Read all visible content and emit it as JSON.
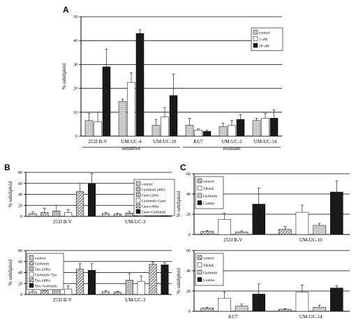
{
  "colors": {
    "background": "#ffffff",
    "axis": "#000000",
    "gridline": "#000000"
  },
  "panels": [
    {
      "letter": "A"
    },
    {
      "letter": "B"
    },
    {
      "letter": "C"
    }
  ],
  "chart_data": [
    {
      "id": "A",
      "type": "bar",
      "ylabel": "% subdiploid",
      "ylim": [
        0,
        50
      ],
      "yticks": [
        0,
        10,
        20,
        30,
        40,
        50
      ],
      "grid": true,
      "legend_position": "top-right",
      "categories": [
        "253J B-V",
        "UM-UC-4",
        "UM-UC-10",
        "KU7",
        "UM-UC-2",
        "UM-UC-14"
      ],
      "category_groups": [
        {
          "label": "sensitive",
          "span": [
            0,
            2
          ]
        },
        {
          "label": "resistant",
          "span": [
            3,
            5
          ]
        }
      ],
      "series": [
        {
          "name": "control",
          "values": [
            6.5,
            14.5,
            4.5,
            4.5,
            4.0,
            6.5
          ],
          "errors": [
            3.0,
            1.0,
            2.5,
            3.0,
            1.5,
            1.0
          ],
          "fill": "dots"
        },
        {
          "name": "1 uM",
          "values": [
            6.0,
            22.5,
            8.0,
            2.5,
            4.5,
            7.5
          ],
          "errors": [
            4.0,
            4.0,
            4.0,
            0.5,
            2.0,
            2.0
          ],
          "fill": "white"
        },
        {
          "name": "10 uM",
          "values": [
            29.0,
            43.0,
            17.0,
            2.0,
            7.0,
            7.5
          ],
          "errors": [
            7.5,
            1.5,
            9.0,
            0.5,
            2.0,
            3.5
          ],
          "fill": "dark"
        }
      ]
    },
    {
      "id": "B-top",
      "type": "bar",
      "ylabel": "% subdiploid",
      "ylim": [
        0,
        80
      ],
      "yticks": [
        0,
        20,
        40,
        60,
        80
      ],
      "grid": true,
      "legend_position": "top-right",
      "categories": [
        "253J B-V",
        "UM-UC-3"
      ],
      "series": [
        {
          "name": "control",
          "values": [
            5,
            5
          ],
          "errors": [
            3,
            2
          ],
          "fill": "dots"
        },
        {
          "name": "Gefitinib (48h)",
          "values": [
            7,
            4
          ],
          "errors": [
            8,
            1.5
          ],
          "fill": "diag"
        },
        {
          "name": "Gem (24h)",
          "values": [
            10,
            6
          ],
          "errors": [
            10,
            3
          ],
          "fill": "grid"
        },
        {
          "name": "Gefitinib>Gem",
          "values": [
            7,
            3
          ],
          "errors": [
            5,
            1
          ],
          "fill": "white"
        },
        {
          "name": "Gem (48h)",
          "values": [
            45,
            1
          ],
          "errors": [
            15,
            0.5
          ],
          "fill": "diag"
        },
        {
          "name": "Gem+Gefitinib",
          "values": [
            60,
            1
          ],
          "errors": [
            18,
            0.5
          ],
          "fill": "dark"
        }
      ]
    },
    {
      "id": "B-bottom",
      "type": "bar",
      "ylabel": "% subdiploid",
      "ylim": [
        0,
        80
      ],
      "yticks": [
        0,
        20,
        40,
        60,
        80
      ],
      "grid": true,
      "legend_position": "top-left",
      "categories": [
        "253J B-V",
        "UM-UC-3"
      ],
      "series": [
        {
          "name": "control",
          "values": [
            5,
            5
          ],
          "errors": [
            4,
            2
          ],
          "fill": "dots"
        },
        {
          "name": "Gefitinib",
          "values": [
            7,
            4
          ],
          "errors": [
            5,
            2
          ],
          "fill": "diag"
        },
        {
          "name": "Tax (24h)",
          "values": [
            30,
            26
          ],
          "errors": [
            12,
            12
          ],
          "fill": "grid"
        },
        {
          "name": "Gefitinib>Tax",
          "values": [
            10,
            24
          ],
          "errors": [
            6,
            10
          ],
          "fill": "white"
        },
        {
          "name": "Tax (48h)",
          "values": [
            46,
            55
          ],
          "errors": [
            10,
            4
          ],
          "fill": "diag"
        },
        {
          "name": "Tax>Gefitinib",
          "values": [
            44,
            54
          ],
          "errors": [
            12,
            4
          ],
          "fill": "dark"
        }
      ]
    },
    {
      "id": "C-top",
      "type": "bar",
      "ylabel": "% subdiploid",
      "ylim": [
        0,
        60
      ],
      "yticks": [
        0,
        20,
        40,
        60
      ],
      "grid": true,
      "legend_position": "top-left",
      "categories": [
        "253J B-V",
        "UM-UC-10"
      ],
      "series": [
        {
          "name": "control",
          "values": [
            3,
            5
          ],
          "errors": [
            1,
            3
          ],
          "fill": "diag"
        },
        {
          "name": "TRAIL",
          "values": [
            15,
            22
          ],
          "errors": [
            6,
            7
          ],
          "fill": "white"
        },
        {
          "name": "Gefitinib",
          "values": [
            2.5,
            9
          ],
          "errors": [
            1,
            2
          ],
          "fill": "dots"
        },
        {
          "name": "Combo",
          "values": [
            30,
            42
          ],
          "errors": [
            16,
            11
          ],
          "fill": "dark"
        }
      ]
    },
    {
      "id": "C-bottom",
      "type": "bar",
      "ylabel": "% subdiploid",
      "ylim": [
        0,
        60
      ],
      "yticks": [
        0,
        20,
        40,
        60
      ],
      "grid": true,
      "legend_position": "top-left",
      "categories": [
        "KU7",
        "UM-UC-14"
      ],
      "series": [
        {
          "name": "control",
          "values": [
            3,
            2
          ],
          "errors": [
            1,
            0.5
          ],
          "fill": "diag"
        },
        {
          "name": "TRAIL",
          "values": [
            13,
            19
          ],
          "errors": [
            6,
            7
          ],
          "fill": "white"
        },
        {
          "name": "Gefitinib",
          "values": [
            5,
            4
          ],
          "errors": [
            2,
            2
          ],
          "fill": "dots"
        },
        {
          "name": "Combo",
          "values": [
            17,
            23
          ],
          "errors": [
            10,
            2
          ],
          "fill": "dark"
        }
      ]
    }
  ]
}
